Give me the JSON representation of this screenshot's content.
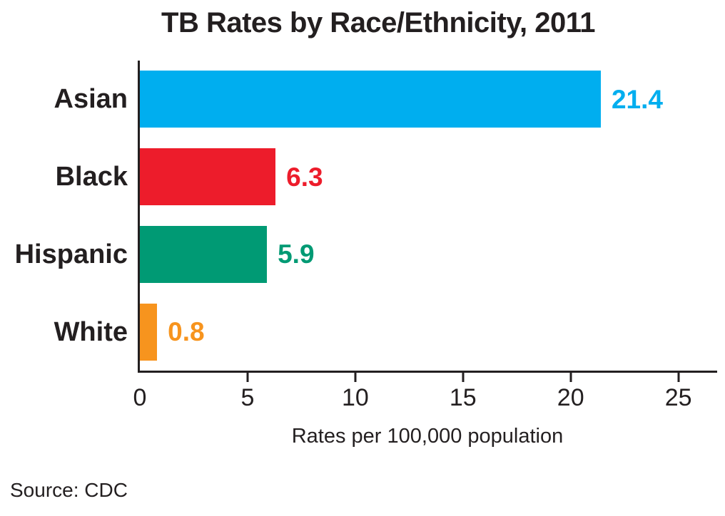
{
  "chart_data": {
    "type": "bar",
    "orientation": "horizontal",
    "title": "TB Rates by Race/Ethnicity, 2011",
    "categories": [
      "Asian",
      "Black",
      "Hispanic",
      "White"
    ],
    "values": [
      21.4,
      6.3,
      5.9,
      0.8
    ],
    "value_labels": [
      "21.4",
      "6.3",
      "5.9",
      "0.8"
    ],
    "bar_colors": [
      "#00AEEF",
      "#ED1C2B",
      "#009A74",
      "#F7941E"
    ],
    "xlabel": "Rates per 100,000 population",
    "xlim": [
      0,
      26.8
    ],
    "xticks": [
      0,
      5,
      10,
      15,
      20,
      25
    ],
    "grid": false,
    "legend": false
  },
  "source": {
    "text": "Source: CDC"
  },
  "colors": {
    "axis": "#231f20",
    "text": "#231f20",
    "background": "#ffffff",
    "asian_bar": "#00AEEF",
    "black_bar": "#ED1C2B",
    "hispanic_bar": "#009A74",
    "white_bar": "#F7941E"
  }
}
